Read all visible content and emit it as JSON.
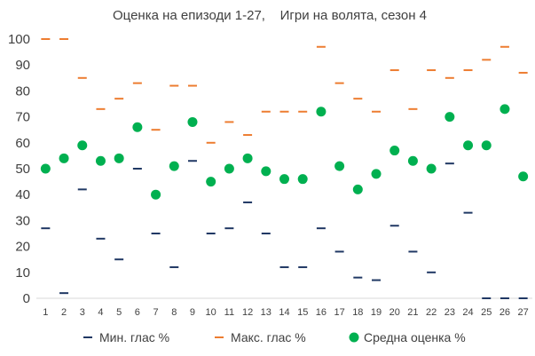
{
  "chart_data": {
    "type": "scatter",
    "title": "Оценка на епизоди 1-27,    Игри на волята, сезон 4",
    "xlabel": "",
    "ylabel": "",
    "ylim": [
      0,
      100
    ],
    "yticks": [
      0,
      10,
      20,
      30,
      40,
      50,
      60,
      70,
      80,
      90,
      100
    ],
    "categories": [
      "1",
      "2",
      "3",
      "4",
      "5",
      "6",
      "7",
      "8",
      "9",
      "10",
      "11",
      "12",
      "13",
      "14",
      "15",
      "16",
      "17",
      "18",
      "19",
      "20",
      "21",
      "22",
      "23",
      "24",
      "25",
      "26",
      "27"
    ],
    "grid": false,
    "legend_position": "bottom",
    "series": [
      {
        "name": "Мин. глас %",
        "marker": "dash",
        "color": "#203864",
        "values": [
          27,
          2,
          42,
          23,
          15,
          50,
          25,
          12,
          53,
          25,
          27,
          37,
          25,
          12,
          12,
          27,
          18,
          8,
          7,
          28,
          18,
          10,
          52,
          33,
          0,
          0,
          0
        ]
      },
      {
        "name": "Макс. глас %",
        "marker": "dash",
        "color": "#ED7D31",
        "values": [
          100,
          100,
          85,
          73,
          77,
          83,
          65,
          82,
          82,
          60,
          68,
          63,
          72,
          72,
          72,
          97,
          83,
          77,
          72,
          88,
          73,
          88,
          85,
          88,
          92,
          97,
          87
        ]
      },
      {
        "name": "Средна оценка %",
        "marker": "circle",
        "color": "#00B050",
        "values": [
          50,
          54,
          59,
          53,
          54,
          66,
          40,
          51,
          68,
          45,
          50,
          54,
          49,
          46,
          46,
          72,
          51,
          42,
          48,
          57,
          53,
          50,
          70,
          59,
          59,
          73,
          47
        ]
      }
    ]
  }
}
